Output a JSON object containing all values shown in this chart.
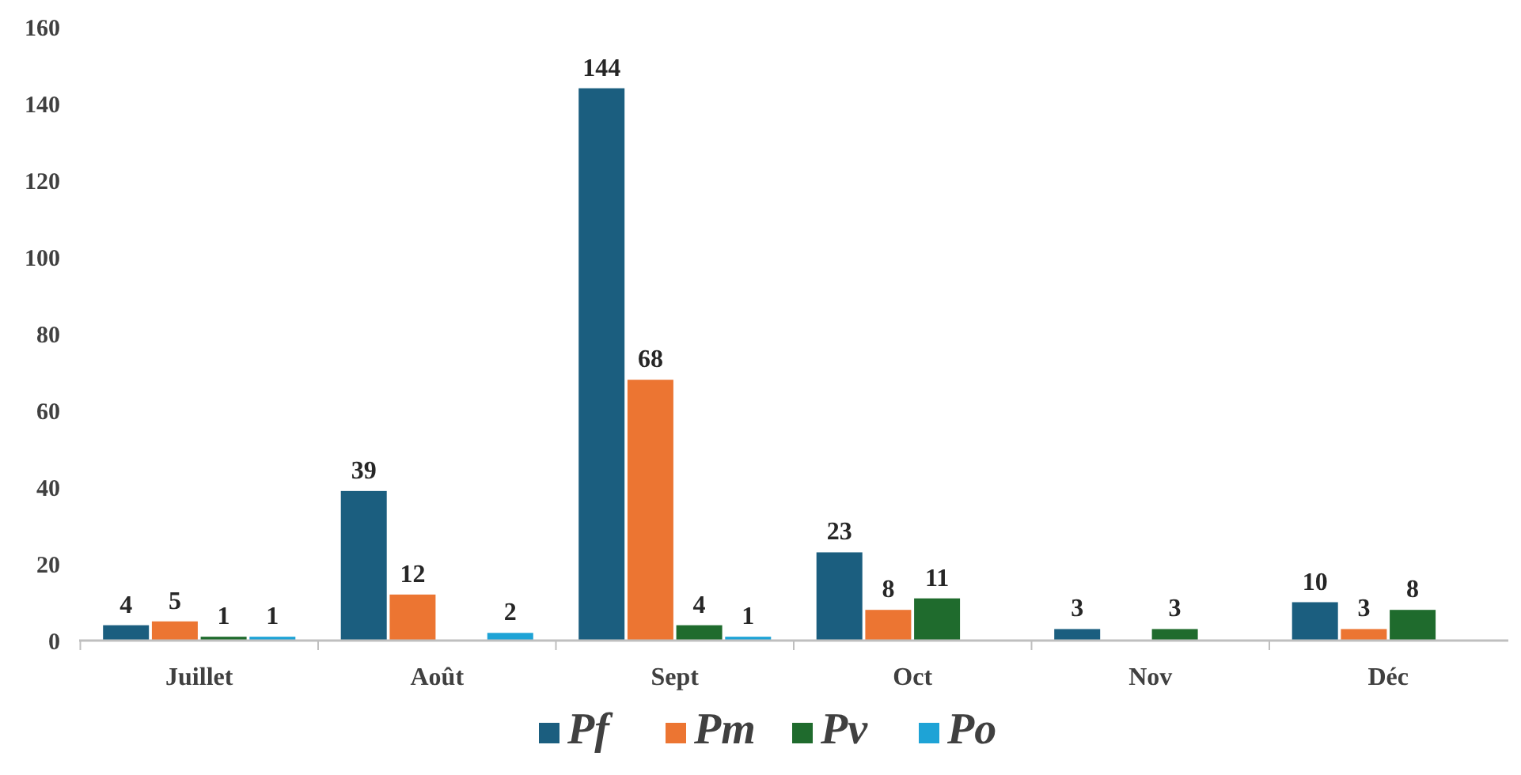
{
  "chart_data": {
    "type": "bar",
    "categories": [
      "Juillet",
      "Août",
      "Sept",
      "Oct",
      "Nov",
      "Déc"
    ],
    "series": [
      {
        "name": "Pf",
        "color": "#1b5e7f",
        "values": [
          4,
          39,
          144,
          23,
          3,
          10
        ]
      },
      {
        "name": "Pm",
        "color": "#ec7532",
        "values": [
          5,
          12,
          68,
          8,
          null,
          3
        ]
      },
      {
        "name": "Pv",
        "color": "#1f6b2d",
        "values": [
          1,
          null,
          4,
          11,
          3,
          8
        ]
      },
      {
        "name": "Po",
        "color": "#1ea3d6",
        "values": [
          1,
          2,
          1,
          null,
          null,
          null
        ]
      }
    ],
    "ylim": [
      0,
      160
    ],
    "yticks": [
      0,
      20,
      40,
      60,
      80,
      100,
      120,
      140,
      160
    ],
    "grid": false,
    "data_labels": true,
    "legend": "bottom"
  }
}
